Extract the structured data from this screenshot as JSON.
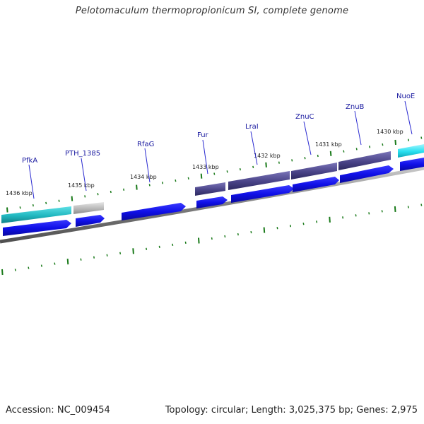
{
  "title": "Pelotomaculum thermopropionicum SI, complete genome",
  "footer": {
    "accession_label": "Accession:",
    "accession": "NC_009454",
    "topology_label": "Topology:",
    "topology": "circular",
    "length_label": "Length:",
    "length": "3,025,375 bp",
    "genes_label": "Genes:",
    "genes": "2,975"
  },
  "colors": {
    "backbone": "#808080",
    "forward_cds": "#1010e8",
    "cog_teal": "#20b8c0",
    "cog_gray": "#b8b8b8",
    "cog_purple": "#4a4488",
    "cog_cyan": "#28e0f0",
    "tick": "#1a7a1a",
    "label": "#1a1aa0"
  },
  "scale": {
    "unit": "kbp",
    "labels": [
      "1436 kbp",
      "1435 kbp",
      "1434 kbp",
      "1433 kbp",
      "1432 kbp",
      "1431 kbp",
      "1430 kbp"
    ]
  },
  "genes": [
    {
      "name": "PfkA",
      "category": "cog_teal"
    },
    {
      "name": "PTH_1385",
      "category": "cog_gray"
    },
    {
      "name": "RfaG",
      "category": "none"
    },
    {
      "name": "Fur",
      "category": "cog_purple"
    },
    {
      "name": "LraI",
      "category": "cog_purple"
    },
    {
      "name": "ZnuC",
      "category": "cog_purple"
    },
    {
      "name": "ZnuB",
      "category": "cog_purple"
    },
    {
      "name": "NuoE",
      "category": "cog_cyan"
    }
  ]
}
